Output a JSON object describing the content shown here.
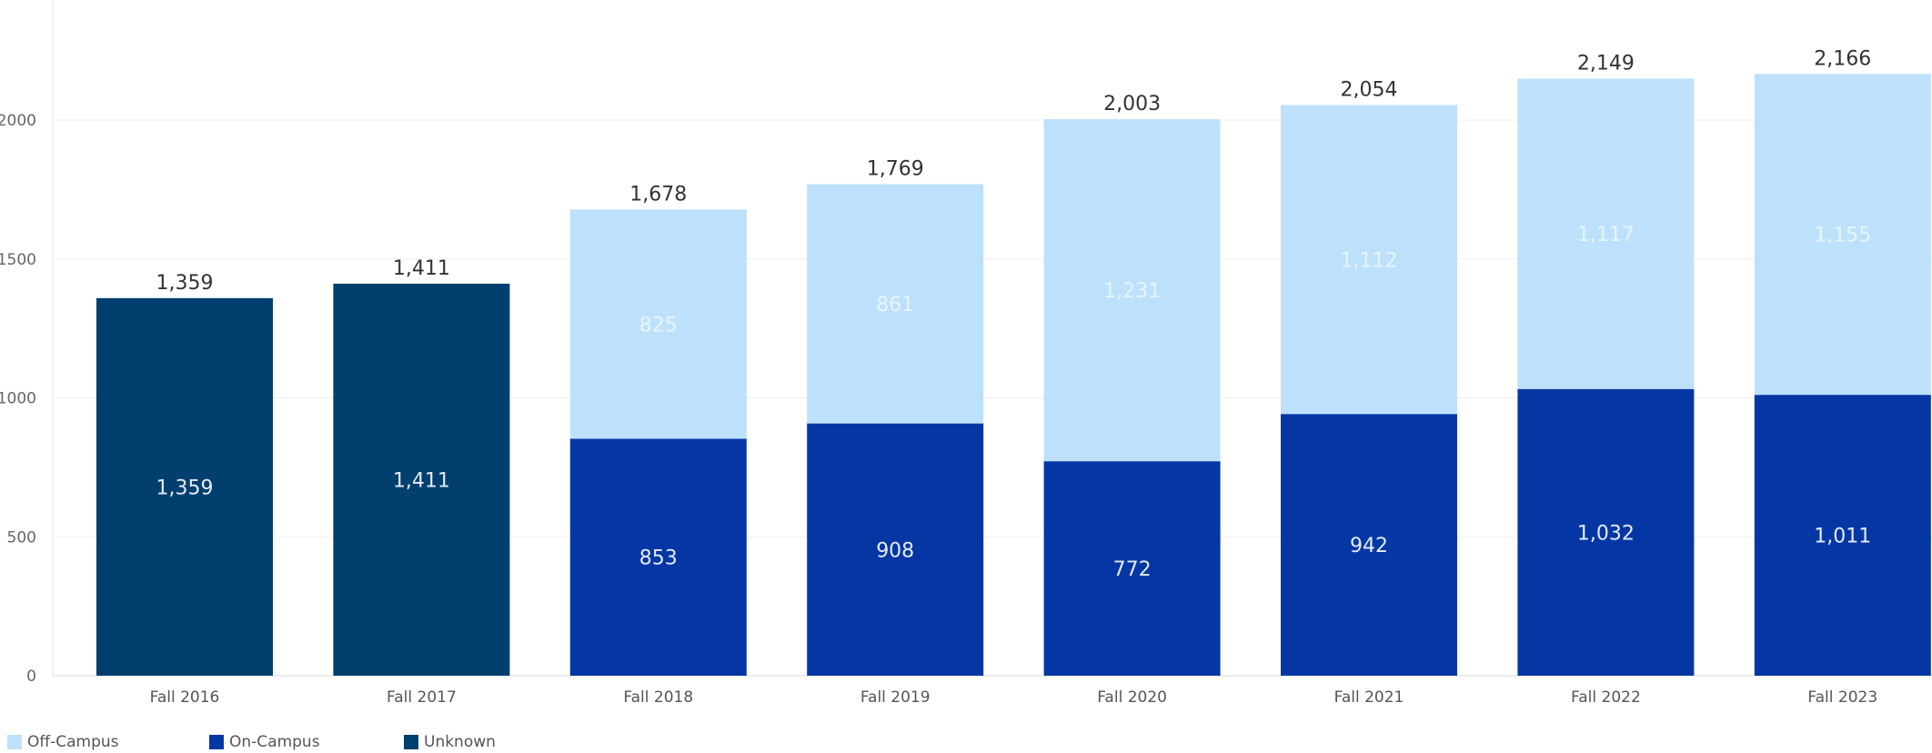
{
  "chart_data": {
    "type": "bar",
    "stacked": true,
    "categories": [
      "Fall 2016",
      "Fall 2017",
      "Fall 2018",
      "Fall 2019",
      "Fall 2020",
      "Fall 2021",
      "Fall 2022",
      "Fall 2023"
    ],
    "series": [
      {
        "name": "Unknown",
        "color": "#003f6e",
        "values": [
          1359,
          1411,
          null,
          null,
          null,
          null,
          null,
          null
        ],
        "labels": [
          "1,359",
          "1,411",
          "",
          "",
          "",
          "",
          "",
          ""
        ]
      },
      {
        "name": "On-Campus",
        "color": "#0437a4",
        "values": [
          null,
          null,
          853,
          908,
          772,
          942,
          1032,
          1011
        ],
        "labels": [
          "",
          "",
          "853",
          "908",
          "772",
          "942",
          "1,032",
          "1,011"
        ]
      },
      {
        "name": "Off-Campus",
        "color": "#bde1fb",
        "values": [
          null,
          null,
          825,
          861,
          1231,
          1112,
          1117,
          1155
        ],
        "labels": [
          "",
          "",
          "825",
          "861",
          "1,231",
          "1,112",
          "1,117",
          "1,155"
        ]
      }
    ],
    "totals": [
      1359,
      1411,
      1678,
      1769,
      2003,
      2054,
      2149,
      2166
    ],
    "total_labels": [
      "1,359",
      "1,411",
      "1,678",
      "1,769",
      "2,003",
      "2,054",
      "2,149",
      "2,166"
    ],
    "yticks": [
      0,
      500,
      1000,
      1500,
      2000
    ],
    "ylim": [
      0,
      2300
    ],
    "xlabel": "",
    "ylabel": "",
    "grid": true,
    "legend_position": "bottom-left"
  },
  "legend": [
    {
      "label": "Off-Campus",
      "color": "#bde1fb"
    },
    {
      "label": "On-Campus",
      "color": "#0437a4"
    },
    {
      "label": "Unknown",
      "color": "#003f6e"
    }
  ]
}
